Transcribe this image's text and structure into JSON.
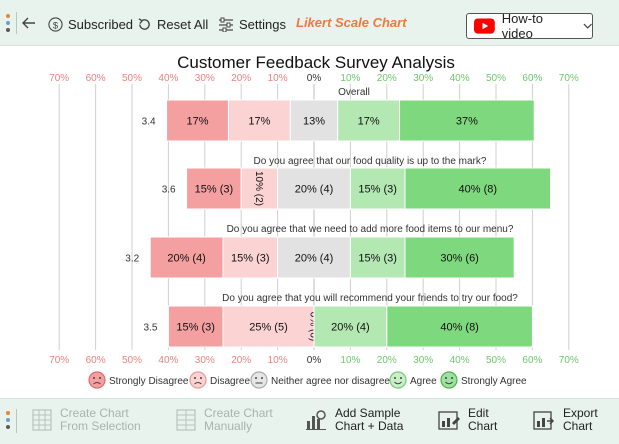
{
  "toolbar": {
    "subscribed_label": "Subscribed",
    "reset_label": "Reset All",
    "settings_label": "Settings",
    "brand_label": "Likert Scale Chart",
    "howto_label": "How-to video"
  },
  "bottombar": {
    "create_selection": [
      "Create Chart",
      "From Selection"
    ],
    "create_manual": [
      "Create Chart",
      "Manually"
    ],
    "add_sample": [
      "Add Sample",
      "Chart + Data"
    ],
    "edit_chart": [
      "Edit",
      "Chart"
    ],
    "export_chart": [
      "Export",
      "Chart"
    ]
  },
  "chart_data": {
    "type": "bar",
    "subtype": "diverging-stacked-likert",
    "title": "Customer Feedback Survey Analysis",
    "axis_ticks": [
      "70%",
      "60%",
      "50%",
      "40%",
      "30%",
      "20%",
      "10%",
      "0%",
      "10%",
      "20%",
      "30%",
      "40%",
      "50%",
      "60%",
      "70%"
    ],
    "legend": [
      "Strongly Disagree",
      "Disagree",
      "Neither agree nor disagree",
      "Agree",
      "Strongly Agree"
    ],
    "colors": {
      "strongly_disagree": "#f4a0a0",
      "disagree": "#fbd3d3",
      "neutral": "#e2e2e2",
      "agree": "#b3e8b3",
      "strongly_agree": "#7ed97e",
      "neg_axis": "#f08080",
      "pos_axis": "#6cc86c"
    },
    "questions": [
      {
        "title": "Overall",
        "score": "3.4",
        "values": [
          17,
          17,
          13,
          17,
          37
        ],
        "labels": [
          "17%",
          "17%",
          "13%",
          "17%",
          "37%"
        ]
      },
      {
        "title": "Do you agree that our food quality is up to the mark?",
        "score": "3.6",
        "values": [
          15,
          10,
          20,
          15,
          40
        ],
        "labels": [
          "15% (3)",
          "10% (2)",
          "20% (4)",
          "15% (3)",
          "40% (8)"
        ]
      },
      {
        "title": "Do you agree that we need to add more food items to our menu?",
        "score": "3.2",
        "values": [
          20,
          15,
          20,
          15,
          30
        ],
        "labels": [
          "20% (4)",
          "15% (3)",
          "20% (4)",
          "15% (3)",
          "30% (6)"
        ]
      },
      {
        "title": "Do you agree that you will recommend your friends to try our food?",
        "score": "3.5",
        "values": [
          15,
          25,
          0,
          20,
          40
        ],
        "labels": [
          "15% (3)",
          "25% (5)",
          "0% (0)",
          "20% (4)",
          "40% (8)"
        ]
      }
    ]
  }
}
